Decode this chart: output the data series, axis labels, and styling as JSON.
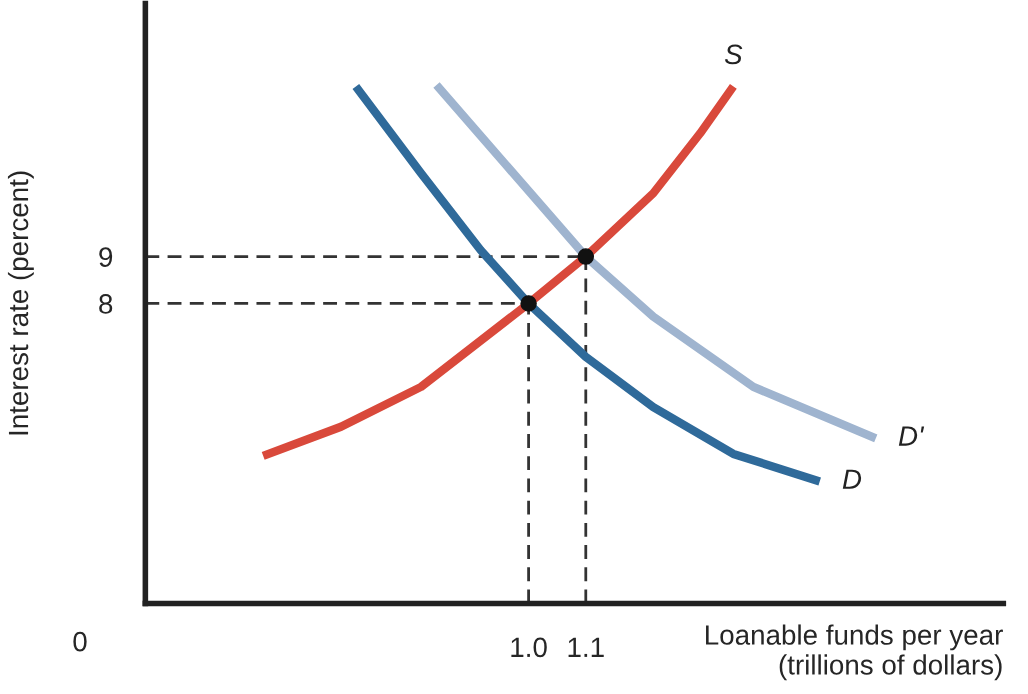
{
  "chart_data": {
    "type": "line",
    "xlabel": "Loanable funds per year\n(trillions of dollars)",
    "ylabel": "Interest rate (percent)",
    "annotations": [
      "0"
    ],
    "xlim": [
      0.33,
      1.83
    ],
    "ylim": [
      1.6,
      14.4
    ],
    "xticks": [
      {
        "value": 1.0,
        "label": "1.0"
      },
      {
        "value": 1.1,
        "label": "1.1"
      }
    ],
    "yticks": [
      8,
      9
    ],
    "grid": false,
    "legend": false,
    "series": [
      {
        "x": [
          0.33,
          1.1
        ],
        "values": [
          9,
          9
        ],
        "color": "#333333",
        "line_style": "dashed"
      },
      {
        "x": [
          0.33,
          1.0
        ],
        "values": [
          8,
          8
        ],
        "color": "#333333",
        "line_style": "dashed"
      },
      {
        "x": [
          1.0,
          1.0
        ],
        "values": [
          1.6,
          8
        ],
        "color": "#333333",
        "line_style": "dashed"
      },
      {
        "x": [
          1.1,
          1.1
        ],
        "values": [
          1.6,
          9
        ],
        "color": "#333333",
        "line_style": "dashed"
      },
      {
        "name": "S",
        "color": "#d9493b",
        "x": [
          0.536,
          0.672,
          0.812,
          1.0,
          1.1,
          1.218,
          1.3,
          1.358
        ],
        "values": [
          4.75,
          5.37,
          6.22,
          8.0,
          9.0,
          10.35,
          11.63,
          12.63
        ]
      },
      {
        "name": "D'",
        "color": "#9fb4cf",
        "x": [
          0.839,
          0.963,
          1.1,
          1.218,
          1.393,
          1.607
        ],
        "values": [
          12.66,
          10.92,
          9.0,
          7.72,
          6.22,
          5.12
        ]
      },
      {
        "name": "D",
        "color": "#2f6a9a",
        "x": [
          0.698,
          0.812,
          0.916,
          1.0,
          1.1,
          1.218,
          1.358,
          1.509
        ],
        "values": [
          12.63,
          10.78,
          9.14,
          8.0,
          6.86,
          5.79,
          4.79,
          4.2
        ]
      },
      {
        "type": "scatter",
        "color": "#111111",
        "marker": "circle",
        "x": [
          1.0,
          1.1
        ],
        "values": [
          8,
          9
        ]
      }
    ]
  }
}
